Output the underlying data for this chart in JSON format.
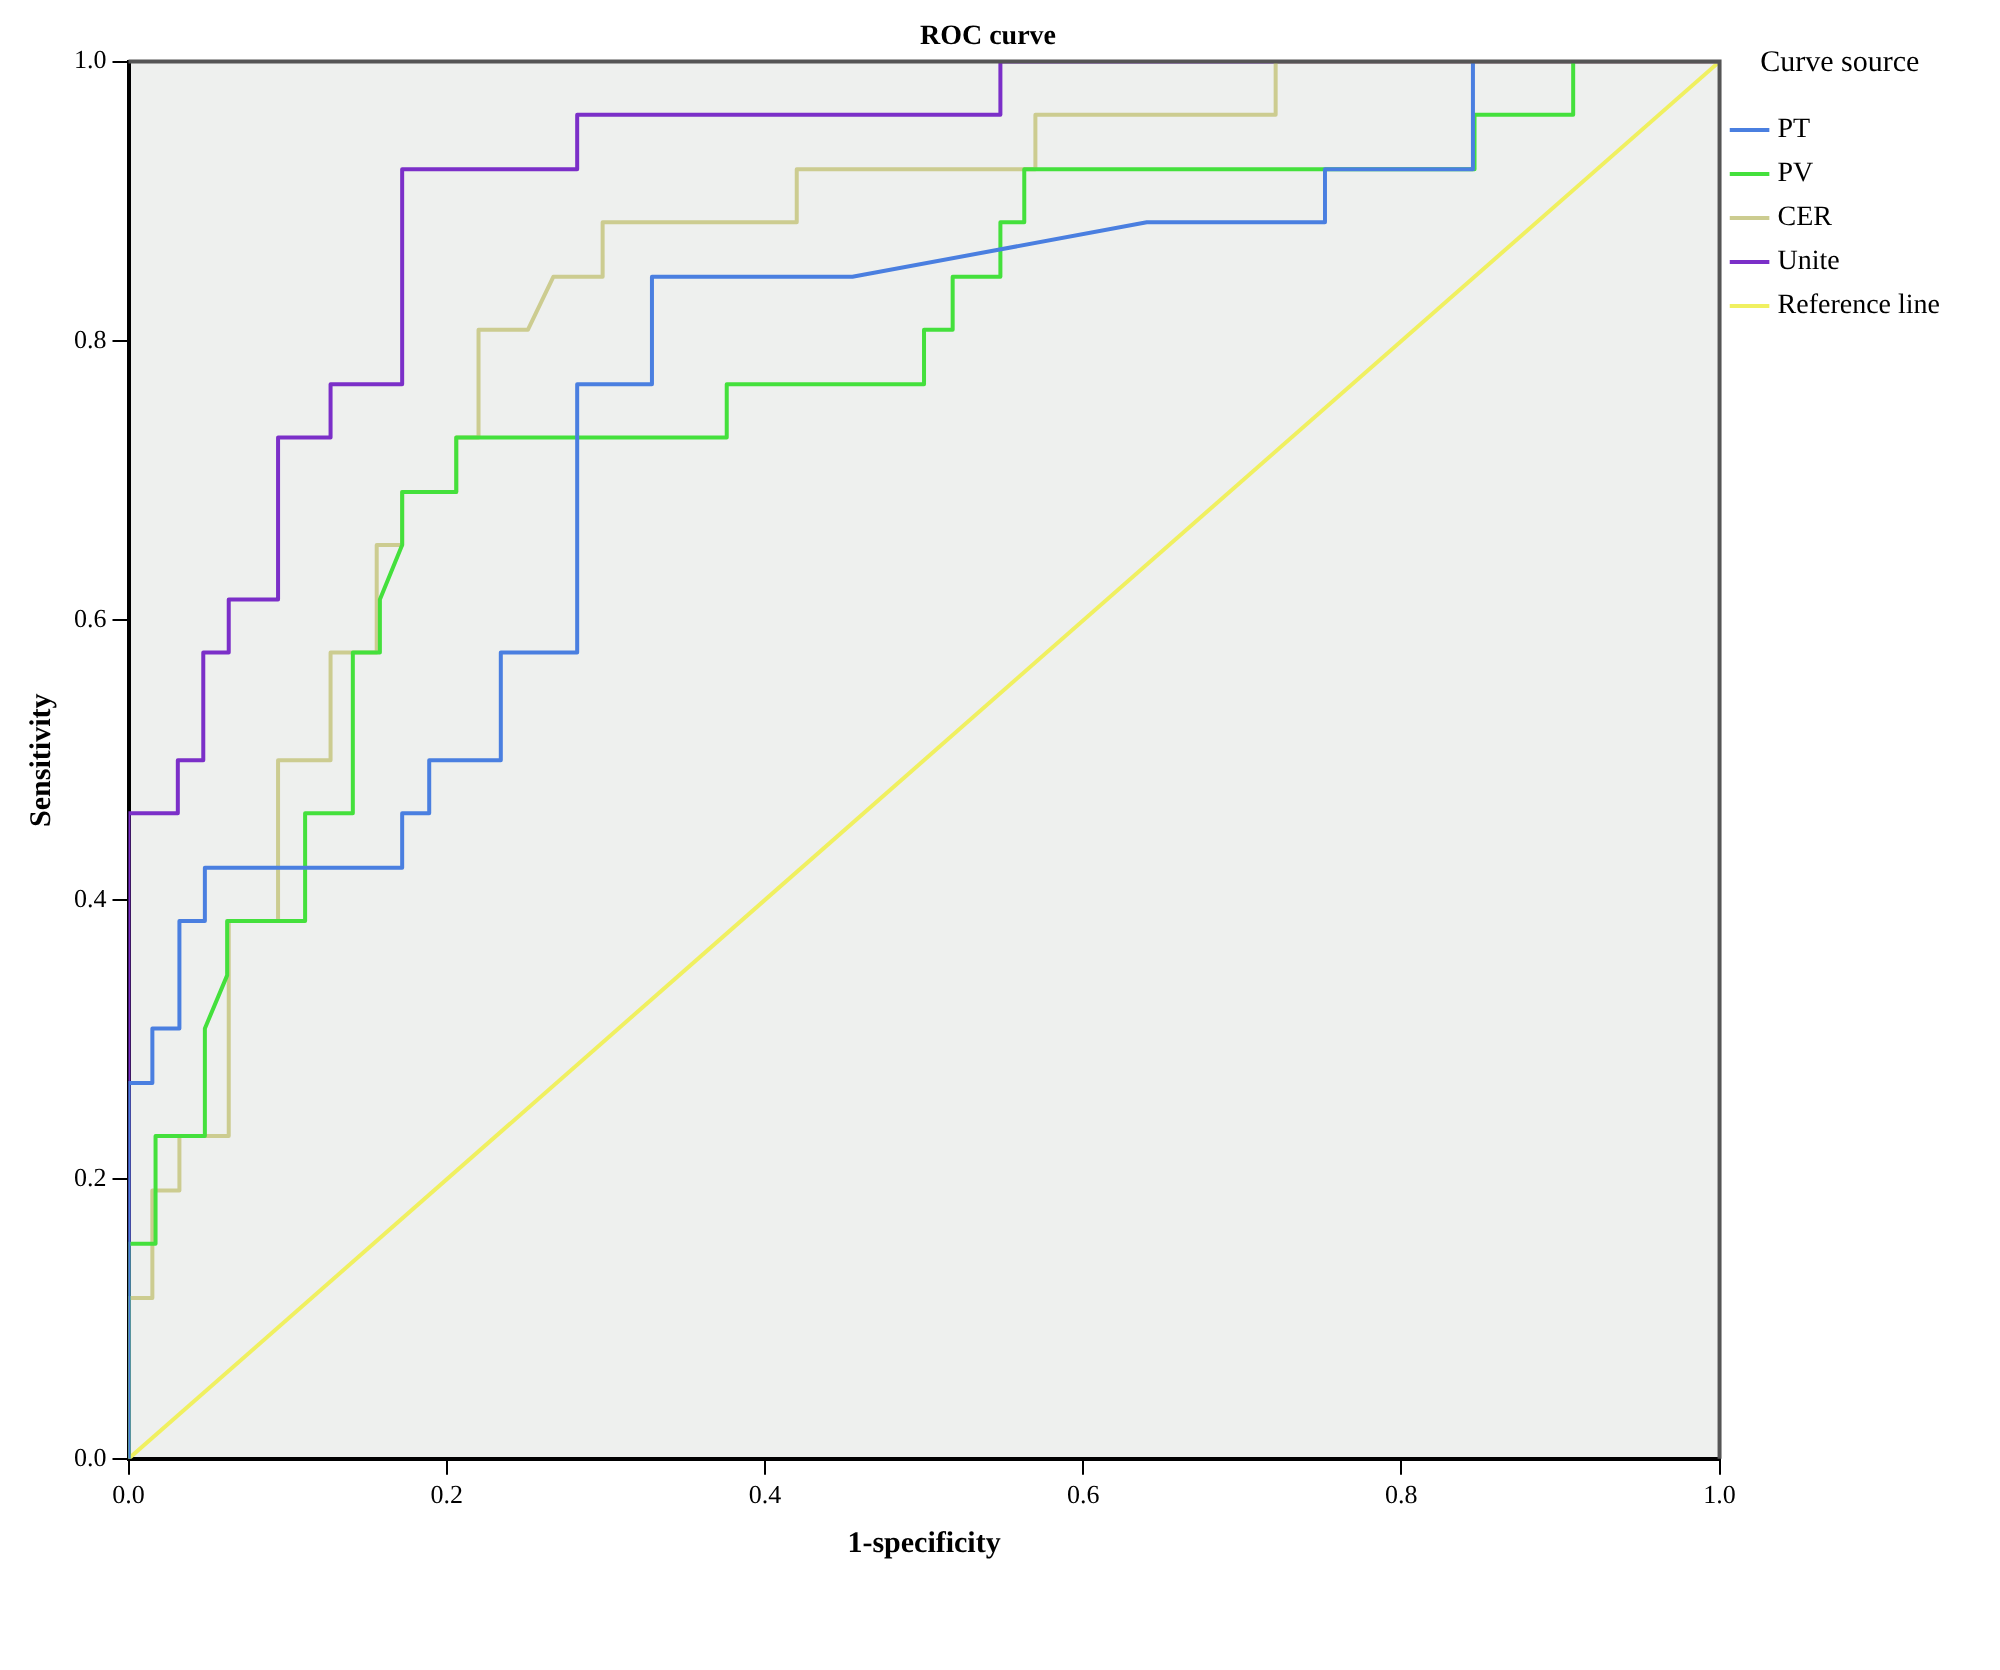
{
  "chart_data": {
    "type": "line",
    "title": "ROC curve",
    "xlabel": "1-specificity",
    "ylabel": "Sensitivity",
    "legend_title": "Curve source",
    "legend": "right",
    "grid": false,
    "marker": "none",
    "line_style": "solid",
    "xlim": [
      0,
      1
    ],
    "ylim": [
      0,
      1
    ],
    "xticks": [
      {
        "value": 0,
        "label": "0.0"
      },
      {
        "value": 0.2,
        "label": "0.2"
      },
      {
        "value": 0.4,
        "label": "0.4"
      },
      {
        "value": 0.6,
        "label": "0.6"
      },
      {
        "value": 0.8,
        "label": "0.8"
      },
      {
        "value": 1,
        "label": "1.0"
      }
    ],
    "yticks": [
      {
        "value": 0,
        "label": "0.0"
      },
      {
        "value": 0.2,
        "label": "0.2"
      },
      {
        "value": 0.4,
        "label": "0.4"
      },
      {
        "value": 0.6,
        "label": "0.6"
      },
      {
        "value": 0.8,
        "label": "0.8"
      },
      {
        "value": 1,
        "label": "1.0"
      }
    ],
    "series": [
      {
        "name": "PT",
        "color": "#4a7fe0",
        "x": [
          0,
          0,
          0.015,
          0.015,
          0.032,
          0.032,
          0.048,
          0.048,
          0.172,
          0.172,
          0.189,
          0.189,
          0.234,
          0.234,
          0.282,
          0.282,
          0.329,
          0.329,
          0.455,
          0.64,
          0.752,
          0.752,
          0.845,
          0.845
        ],
        "values": [
          0,
          0.269,
          0.269,
          0.308,
          0.308,
          0.385,
          0.385,
          0.423,
          0.423,
          0.462,
          0.462,
          0.5,
          0.5,
          0.577,
          0.577,
          0.769,
          0.769,
          0.846,
          0.846,
          0.885,
          0.885,
          0.923,
          0.923,
          1
        ]
      },
      {
        "name": "PV",
        "color": "#44e03c",
        "x": [
          0,
          0,
          0.017,
          0.017,
          0.048,
          0.048,
          0.062,
          0.062,
          0.111,
          0.111,
          0.141,
          0.141,
          0.158,
          0.158,
          0.172,
          0.172,
          0.206,
          0.206,
          0.376,
          0.376,
          0.5,
          0.5,
          0.518,
          0.518,
          0.548,
          0.548,
          0.563,
          0.563,
          0.846,
          0.846,
          0.908,
          0.908
        ],
        "values": [
          0,
          0.154,
          0.154,
          0.231,
          0.231,
          0.308,
          0.346,
          0.385,
          0.385,
          0.462,
          0.462,
          0.577,
          0.577,
          0.615,
          0.654,
          0.692,
          0.692,
          0.731,
          0.731,
          0.769,
          0.769,
          0.808,
          0.808,
          0.846,
          0.846,
          0.885,
          0.885,
          0.923,
          0.923,
          0.962,
          0.962,
          1
        ]
      },
      {
        "name": "CER",
        "color": "#cccc90",
        "x": [
          0,
          0,
          0.015,
          0.015,
          0.032,
          0.032,
          0.063,
          0.063,
          0.094,
          0.094,
          0.127,
          0.127,
          0.156,
          0.156,
          0.172,
          0.172,
          0.206,
          0.206,
          0.22,
          0.22,
          0.251,
          0.267,
          0.298,
          0.298,
          0.42,
          0.42,
          0.57,
          0.57,
          0.721,
          0.721,
          1
        ],
        "values": [
          0,
          0.115,
          0.115,
          0.192,
          0.192,
          0.231,
          0.231,
          0.385,
          0.385,
          0.5,
          0.5,
          0.577,
          0.577,
          0.654,
          0.654,
          0.692,
          0.692,
          0.731,
          0.731,
          0.808,
          0.808,
          0.846,
          0.846,
          0.885,
          0.885,
          0.923,
          0.923,
          0.962,
          0.962,
          1,
          1
        ]
      },
      {
        "name": "Unite",
        "color": "#7b2fc8",
        "x": [
          0,
          0,
          0.031,
          0.031,
          0.047,
          0.047,
          0.063,
          0.063,
          0.094,
          0.094,
          0.127,
          0.127,
          0.172,
          0.172,
          0.282,
          0.282,
          0.548,
          0.548,
          1
        ],
        "values": [
          0,
          0.462,
          0.462,
          0.5,
          0.5,
          0.577,
          0.577,
          0.615,
          0.615,
          0.731,
          0.731,
          0.769,
          0.769,
          0.923,
          0.923,
          0.962,
          0.962,
          1,
          1
        ]
      },
      {
        "name": "Reference line",
        "color": "#f0f060",
        "x": [
          0,
          1
        ],
        "values": [
          0,
          1
        ]
      }
    ]
  }
}
